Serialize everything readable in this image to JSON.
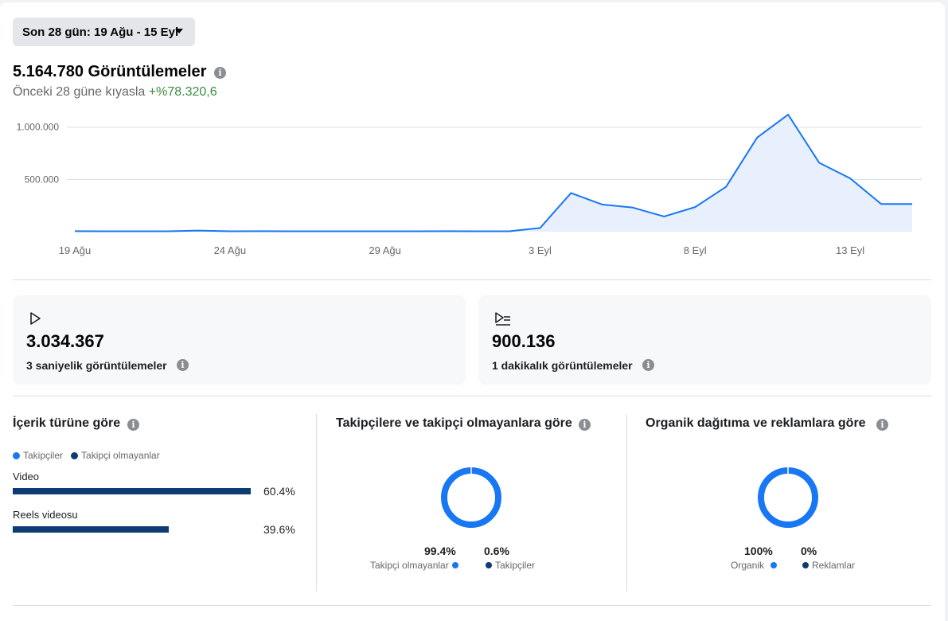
{
  "date_range": {
    "label": "Son 28 gün: 19 Ağu - 15 Eyl"
  },
  "summary": {
    "total": "5.164.780",
    "total_label": "Görüntülemeler",
    "comparison_text": "Önceki 28 güne kıyasla",
    "comparison_value": "+%78.320,6"
  },
  "chart_data": {
    "type": "area",
    "y_ticks": [
      "500.000",
      "1.000.000"
    ],
    "x_ticks": [
      "19 Ağu",
      "24 Ağu",
      "29 Ağu",
      "3 Eyl",
      "8 Eyl",
      "13 Eyl"
    ],
    "x": [
      "19 Ağu",
      "20 Ağu",
      "21 Ağu",
      "22 Ağu",
      "23 Ağu",
      "24 Ağu",
      "25 Ağu",
      "26 Ağu",
      "27 Ağu",
      "28 Ağu",
      "29 Ağu",
      "30 Ağu",
      "31 Ağu",
      "1 Eyl",
      "2 Eyl",
      "3 Eyl",
      "4 Eyl",
      "5 Eyl",
      "6 Eyl",
      "7 Eyl",
      "8 Eyl",
      "9 Eyl",
      "10 Eyl",
      "11 Eyl",
      "12 Eyl",
      "13 Eyl",
      "14 Eyl",
      "15 Eyl"
    ],
    "values": [
      5000,
      4000,
      4000,
      4000,
      10000,
      4000,
      5000,
      4000,
      4000,
      4000,
      4000,
      4000,
      5000,
      4000,
      4000,
      35000,
      370000,
      260000,
      230000,
      145000,
      235000,
      430000,
      900000,
      1120000,
      660000,
      510000,
      265000,
      265000
    ],
    "ylim": [
      0,
      1150000
    ],
    "grid": true,
    "line_color": "#1877f2",
    "fill_color": "#e7f0fc"
  },
  "metrics": [
    {
      "icon": "play-icon",
      "value": "3.034.367",
      "label": "3 saniyelik görüntülemeler"
    },
    {
      "icon": "play-list-icon",
      "value": "900.136",
      "label": "1 dakikalık görüntülemeler"
    }
  ],
  "content_type": {
    "title": "İçerik türüne göre",
    "legend": [
      {
        "label": "Takipçiler",
        "color": "#1877f2"
      },
      {
        "label": "Takipçi olmayanlar",
        "color": "#0d3b73"
      }
    ],
    "bars": [
      {
        "label": "Video",
        "value": 60.4,
        "pct": "60.4%"
      },
      {
        "label": "Reels videosu",
        "value": 39.6,
        "pct": "39.6%"
      }
    ]
  },
  "followers": {
    "title": "Takipçilere ve takipçi olmayanlara göre",
    "items": [
      {
        "pct": "99.4%",
        "value": 99.4,
        "label": "Takipçi olmayanlar",
        "color": "#1877f2"
      },
      {
        "pct": "0.6%",
        "value": 0.6,
        "label": "Takipçiler",
        "color": "#0d3b73"
      }
    ]
  },
  "organic": {
    "title": "Organik dağıtıma ve reklamlara göre",
    "items": [
      {
        "pct": "100%",
        "value": 100,
        "label": "Organik",
        "color": "#1877f2"
      },
      {
        "pct": "0%",
        "value": 0,
        "label": "Reklamlar",
        "color": "#0d3b73"
      }
    ]
  }
}
